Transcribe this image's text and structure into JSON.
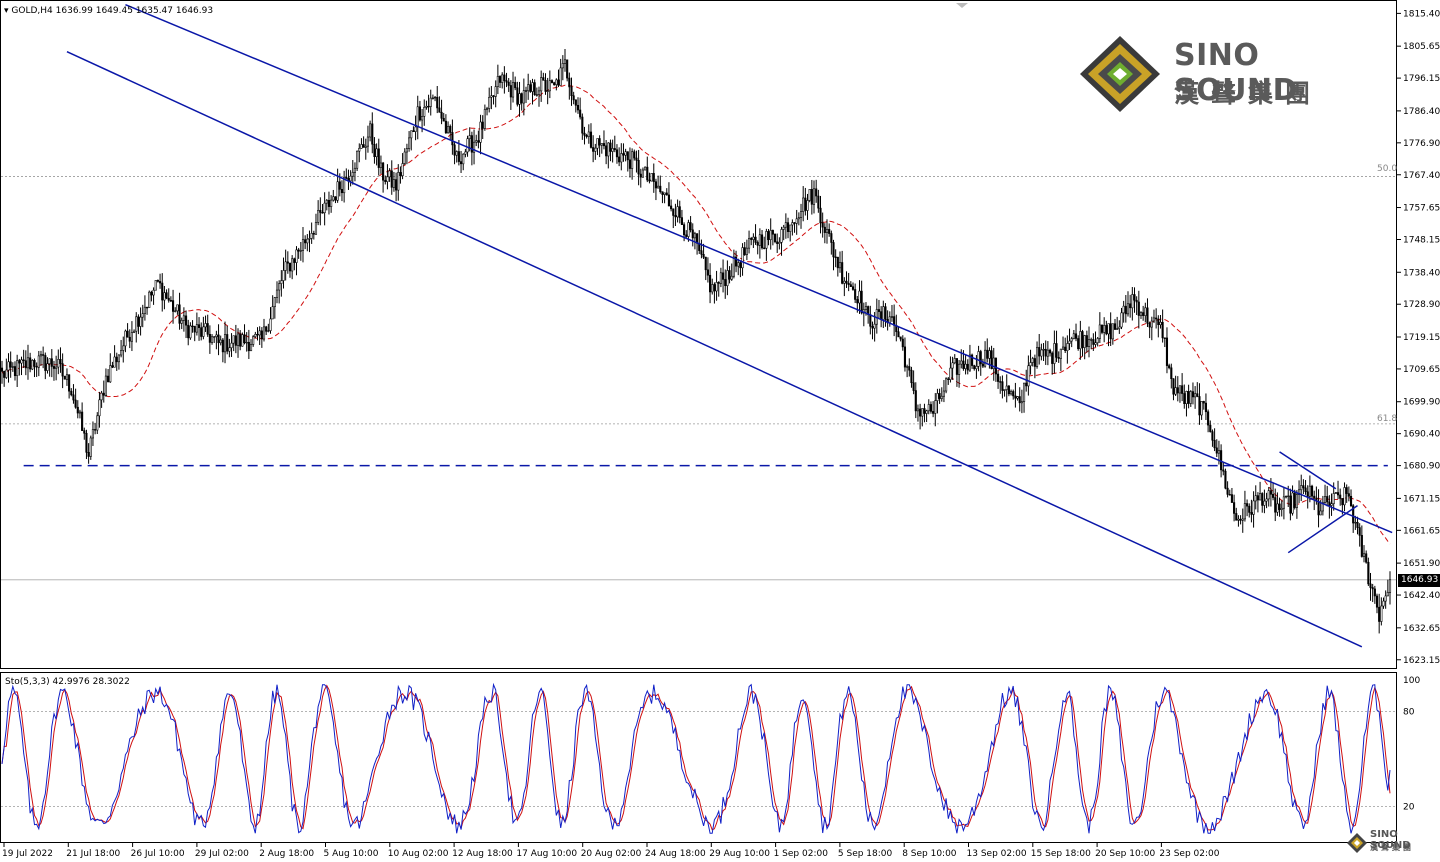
{
  "header": {
    "symbol": "GOLD,H4",
    "ohlc": "1636.99 1649.45 1635.47 1646.93"
  },
  "stoch_header": "Sto(5,3,3) 42.9976 28.3022",
  "current_price": "1646.93",
  "fib_labels": {
    "fib50": "50.0",
    "fib618": "61.8"
  },
  "logo": {
    "name": "SINO SOUND",
    "cn": "漢聲集團"
  },
  "colors": {
    "candle": "#000000",
    "channel": "#0a17a8",
    "ma": "#d01010",
    "stoch_main": "#1020c8",
    "stoch_signal": "#d01010",
    "grid": "#9a9a9a"
  },
  "chart_data": {
    "type": "candlestick",
    "title": "GOLD,H4",
    "y_ticks": [
      "1815.40",
      "1805.65",
      "1796.15",
      "1786.40",
      "1776.90",
      "1767.40",
      "1757.65",
      "1748.15",
      "1738.40",
      "1728.90",
      "1719.15",
      "1709.65",
      "1699.90",
      "1690.40",
      "1680.90",
      "1671.15",
      "1661.65",
      "1651.90",
      "1642.40",
      "1632.65",
      "1623.15"
    ],
    "x_ticks": [
      "19 Jul 2022",
      "21 Jul 18:00",
      "26 Jul 10:00",
      "29 Jul 02:00",
      "2 Aug 18:00",
      "5 Aug 10:00",
      "10 Aug 02:00",
      "12 Aug 18:00",
      "17 Aug 10:00",
      "20 Aug 02:00",
      "24 Aug 18:00",
      "29 Aug 10:00",
      "1 Sep 02:00",
      "5 Sep 18:00",
      "8 Sep 10:00",
      "13 Sep 02:00",
      "15 Sep 18:00",
      "20 Sep 10:00",
      "23 Sep 02:00"
    ],
    "ylim": [
      1621.0,
      1817.0
    ],
    "price_anchors": [
      [
        0,
        1708
      ],
      [
        15,
        1712
      ],
      [
        25,
        1711
      ],
      [
        32,
        1704
      ],
      [
        40,
        1684
      ],
      [
        48,
        1707
      ],
      [
        60,
        1722
      ],
      [
        72,
        1735
      ],
      [
        85,
        1722
      ],
      [
        95,
        1720
      ],
      [
        100,
        1717
      ],
      [
        110,
        1718
      ],
      [
        120,
        1718
      ],
      [
        130,
        1738
      ],
      [
        140,
        1748
      ],
      [
        152,
        1760
      ],
      [
        160,
        1768
      ],
      [
        170,
        1780
      ],
      [
        175,
        1768
      ],
      [
        182,
        1764
      ],
      [
        192,
        1786
      ],
      [
        200,
        1790
      ],
      [
        210,
        1772
      ],
      [
        220,
        1779
      ],
      [
        230,
        1796
      ],
      [
        240,
        1790
      ],
      [
        248,
        1794
      ],
      [
        255,
        1793
      ],
      [
        260,
        1800
      ],
      [
        270,
        1778
      ],
      [
        280,
        1775
      ],
      [
        290,
        1772
      ],
      [
        300,
        1765
      ],
      [
        310,
        1758
      ],
      [
        320,
        1747
      ],
      [
        328,
        1733
      ],
      [
        338,
        1740
      ],
      [
        348,
        1748
      ],
      [
        358,
        1749
      ],
      [
        368,
        1757
      ],
      [
        375,
        1762
      ],
      [
        382,
        1748
      ],
      [
        388,
        1738
      ],
      [
        395,
        1732
      ],
      [
        400,
        1724
      ],
      [
        410,
        1726
      ],
      [
        416,
        1716
      ],
      [
        422,
        1698
      ],
      [
        430,
        1697
      ],
      [
        440,
        1710
      ],
      [
        448,
        1712
      ],
      [
        455,
        1714
      ],
      [
        462,
        1705
      ],
      [
        470,
        1698
      ],
      [
        475,
        1713
      ],
      [
        485,
        1714
      ],
      [
        492,
        1718
      ],
      [
        500,
        1719
      ],
      [
        508,
        1720
      ],
      [
        515,
        1722
      ],
      [
        522,
        1731
      ],
      [
        530,
        1724
      ],
      [
        536,
        1721
      ],
      [
        540,
        1705
      ],
      [
        546,
        1701
      ],
      [
        552,
        1700
      ],
      [
        558,
        1693
      ],
      [
        564,
        1678
      ],
      [
        570,
        1665
      ],
      [
        576,
        1668
      ],
      [
        582,
        1672
      ],
      [
        590,
        1668
      ],
      [
        596,
        1670
      ],
      [
        602,
        1674
      ],
      [
        608,
        1668
      ],
      [
        614,
        1670
      ],
      [
        618,
        1671
      ],
      [
        622,
        1672
      ],
      [
        626,
        1660
      ],
      [
        632,
        1646
      ],
      [
        636,
        1637
      ],
      [
        641,
        1646.93
      ]
    ],
    "candle_count": 642,
    "overlays": {
      "moving_average": "dashed red",
      "channel_upper": [
        [
          57,
          1818
        ],
        [
          642,
          1661
        ]
      ],
      "channel_lower": [
        [
          30,
          1804
        ],
        [
          628,
          1627
        ]
      ],
      "support_dashed": [
        [
          10,
          1680.9
        ],
        [
          640,
          1680.9
        ]
      ],
      "triangle_upper": [
        [
          590,
          1685
        ],
        [
          616,
          1674
        ]
      ],
      "triangle_lower": [
        [
          594,
          1655
        ],
        [
          626,
          1669
        ]
      ],
      "fib_50": 1766.9,
      "fib_618": 1693.3
    },
    "stochastic": {
      "ylim": [
        0,
        100
      ],
      "levels": [
        20,
        80
      ],
      "y_ticks": [
        "100",
        "80",
        "20"
      ],
      "main": 42.9976,
      "signal": 28.3022
    }
  }
}
